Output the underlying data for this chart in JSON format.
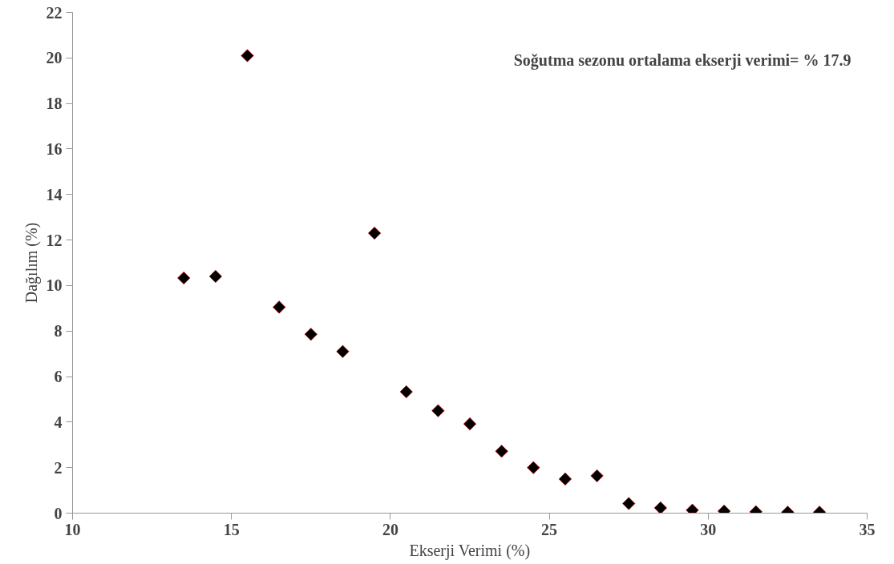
{
  "chart_data": {
    "type": "scatter",
    "xlabel": "Ekserji Verimi (%)",
    "ylabel": "Dağılım (%)",
    "annotations": [
      "Soğutma sezonu ortalama ekserji verimi= % 17.9"
    ],
    "x": [
      13.5,
      14.5,
      15.5,
      16.5,
      17.5,
      18.5,
      19.5,
      20.5,
      21.5,
      22.5,
      23.5,
      24.5,
      25.5,
      26.5,
      27.5,
      28.5,
      29.5,
      30.5,
      31.5,
      32.5,
      33.5
    ],
    "series": [
      {
        "color": "#000000",
        "values": [
          10.33,
          10.4,
          20.1,
          9.05,
          7.86,
          7.1,
          12.3,
          5.33,
          4.5,
          3.92,
          2.72,
          2.0,
          1.5,
          1.64,
          0.42,
          0.23,
          0.13,
          0.09,
          0.06,
          0.04,
          0.04
        ]
      }
    ],
    "xlim": [
      10,
      35
    ],
    "xticks": [
      10,
      15,
      20,
      25,
      30,
      35
    ],
    "ylim": [
      0,
      22
    ],
    "yticks": [
      0,
      2,
      4,
      6,
      8,
      10,
      12,
      14,
      16,
      18,
      20,
      22
    ],
    "grid": false,
    "marker": "diamond"
  }
}
